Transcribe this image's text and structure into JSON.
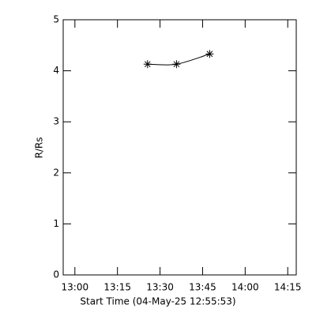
{
  "chart_data": {
    "type": "line",
    "x_label": "Start Time (04-May-25 12:55:53)",
    "y_label": "R/Rs",
    "x": [
      805.6,
      815.8,
      827.5
    ],
    "series": [
      {
        "color": "#000000",
        "values": [
          4.13,
          4.13,
          4.33
        ]
      }
    ],
    "xlim": [
      775.88,
      858
    ],
    "xticks": [
      {
        "value": 780,
        "label": "13:00"
      },
      {
        "value": 795,
        "label": "13:15"
      },
      {
        "value": 810,
        "label": "13:30"
      },
      {
        "value": 825,
        "label": "13:45"
      },
      {
        "value": 840,
        "label": "14:00"
      },
      {
        "value": 855,
        "label": "14:15"
      }
    ],
    "ylim": [
      0,
      5
    ],
    "yticks": [
      0,
      1,
      2,
      3,
      4,
      5
    ]
  }
}
